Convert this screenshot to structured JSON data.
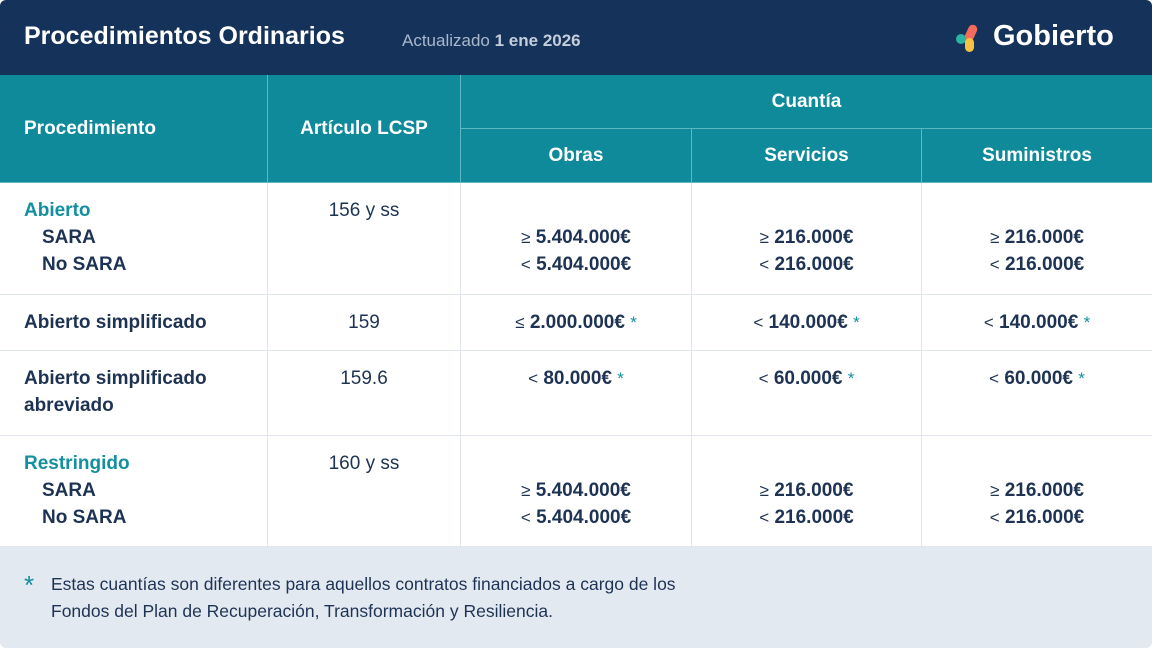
{
  "header": {
    "title": "Procedimientos Ordinarios",
    "updated_label": "Actualizado",
    "updated_date": "1 ene 2026",
    "brand": "Gobierto"
  },
  "table": {
    "columns": [
      "Procedimiento",
      "Artículo LCSP"
    ],
    "group": "Cuantía",
    "subcolumns": [
      "Obras",
      "Servicios",
      "Suministros"
    ],
    "rows": [
      {
        "procedure": "Abierto",
        "subtypes": [
          "SARA",
          "No SARA"
        ],
        "article": "156 y ss",
        "amounts": [
          [
            {
              "op": "≥",
              "value": "5.404.000€"
            },
            {
              "op": "<",
              "value": "5.404.000€"
            }
          ],
          [
            {
              "op": "≥",
              "value": "216.000€"
            },
            {
              "op": "<",
              "value": "216.000€"
            }
          ],
          [
            {
              "op": "≥",
              "value": "216.000€"
            },
            {
              "op": "<",
              "value": "216.000€"
            }
          ]
        ]
      },
      {
        "procedure": "Abierto simplificado",
        "article": "159",
        "amounts": [
          [
            {
              "op": "≤",
              "value": "2.000.000€",
              "note": "*"
            }
          ],
          [
            {
              "op": "<",
              "value": "140.000€",
              "note": "*"
            }
          ],
          [
            {
              "op": "<",
              "value": "140.000€",
              "note": "*"
            }
          ]
        ]
      },
      {
        "procedure": "Abierto simplificado abreviado",
        "article": "159.6",
        "amounts": [
          [
            {
              "op": "<",
              "value": "80.000€",
              "note": "*"
            }
          ],
          [
            {
              "op": "<",
              "value": "60.000€",
              "note": "*"
            }
          ],
          [
            {
              "op": "<",
              "value": "60.000€",
              "note": "*"
            }
          ]
        ]
      },
      {
        "procedure": "Restringido",
        "subtypes": [
          "SARA",
          "No SARA"
        ],
        "article": "160 y ss",
        "amounts": [
          [
            {
              "op": "≥",
              "value": "5.404.000€"
            },
            {
              "op": "<",
              "value": "5.404.000€"
            }
          ],
          [
            {
              "op": "≥",
              "value": "216.000€"
            },
            {
              "op": "<",
              "value": "216.000€"
            }
          ],
          [
            {
              "op": "≥",
              "value": "216.000€"
            },
            {
              "op": "<",
              "value": "216.000€"
            }
          ]
        ]
      }
    ]
  },
  "footnote": {
    "mark": "*",
    "text": "Estas cuantías son diferentes para aquellos contratos financiados a cargo de los Fondos del Plan de Recuperación, Transformación y Resiliencia."
  }
}
